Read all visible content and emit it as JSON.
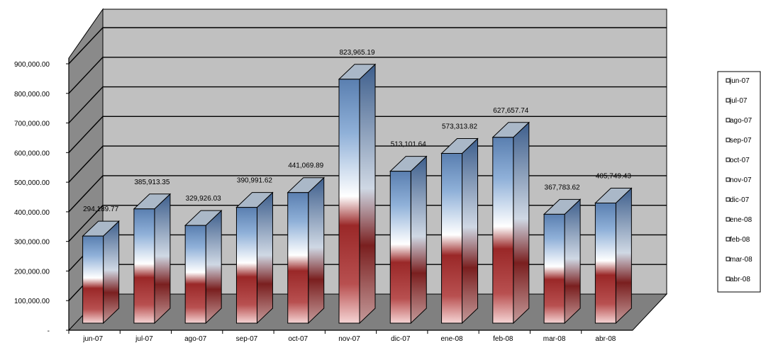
{
  "chart_data": {
    "type": "bar",
    "categories": [
      "jun-07",
      "jul-07",
      "ago-07",
      "sep-07",
      "oct-07",
      "nov-07",
      "dic-07",
      "ene-08",
      "feb-08",
      "mar-08",
      "abr-08"
    ],
    "values": [
      294189.77,
      385913.35,
      329926.03,
      390991.62,
      441069.89,
      823965.19,
      513101.64,
      573313.82,
      627657.74,
      367783.62,
      405749.43
    ],
    "data_labels": [
      "294,189.77",
      "385,913.35",
      "329,926.03",
      "390,991.62",
      "441,069.89",
      "823,965.19",
      "513,101.64",
      "573,313.82",
      "627,657.74",
      "367,783.62",
      "405,749.43"
    ],
    "y_ticks": [
      "-",
      "100,000.00",
      "200,000.00",
      "300,000.00",
      "400,000.00",
      "500,000.00",
      "600,000.00",
      "700,000.00",
      "800,000.00",
      "900,000.00"
    ],
    "ylim": [
      0,
      900000
    ],
    "grid": true,
    "three_d": true,
    "legend_position": "right",
    "colors": {
      "wall": "#c0c0c0",
      "wall_side": "#8a8a8a",
      "floor": "#808080",
      "bar_blue": "#5b80b2",
      "bar_white": "#ffffff",
      "bar_red": "#a83232"
    }
  }
}
